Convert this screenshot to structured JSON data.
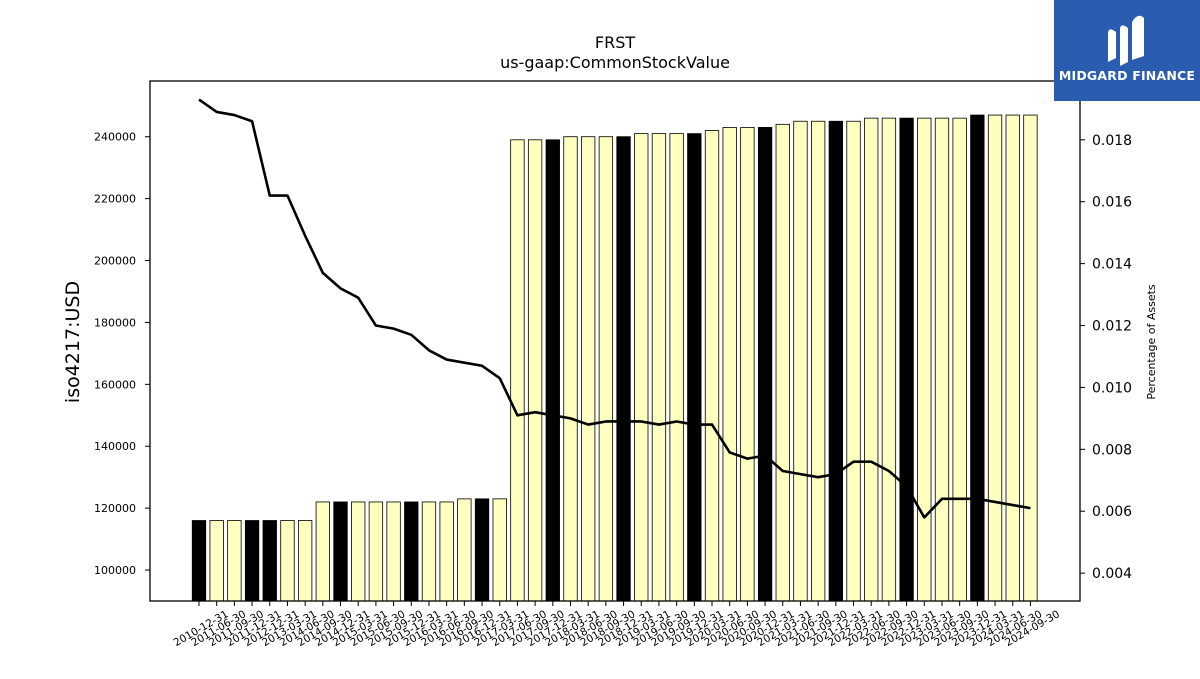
{
  "brand": {
    "name": "MIDGARD FINANCE",
    "bg_color": "#2a5db0"
  },
  "chart_data": {
    "type": "bar",
    "title": "FRST",
    "subtitle": "us-gaap:CommonStockValue",
    "ylabel": "iso4217:USD",
    "y2label": "Percentage of Assets",
    "ylim": [
      90000,
      258000
    ],
    "y2lim": [
      0.0031,
      0.0199
    ],
    "yticks": [
      100000,
      120000,
      140000,
      160000,
      180000,
      200000,
      220000,
      240000
    ],
    "y2ticks": [
      0.004,
      0.006,
      0.008,
      0.01,
      0.012,
      0.014,
      0.016,
      0.018
    ],
    "bar_colors": {
      "annual": "#000000",
      "quarterly": "#ffffc0"
    },
    "line_color": "#000000",
    "x_labels": [
      "2010-12-31",
      "2011-06-30",
      "2011-09-30",
      "2011-12-31",
      "2012-12-31",
      "2013-03-31",
      "2014-06-30",
      "2014-09-30",
      "2014-12-31",
      "2015-03-31",
      "2015-06-30",
      "2015-09-30",
      "2015-12-31",
      "2016-03-31",
      "2016-06-30",
      "2016-09-30",
      "2016-12-31",
      "2017-03-31",
      "2017-06-30",
      "2017-09-30",
      "2017-12-31",
      "2018-03-31",
      "2018-06-30",
      "2018-09-30",
      "2018-12-31",
      "2019-03-31",
      "2019-06-30",
      "2019-09-30",
      "2019-12-31",
      "2020-03-31",
      "2020-06-30",
      "2020-09-30",
      "2020-12-31",
      "2021-03-31",
      "2021-06-30",
      "2021-09-30",
      "2021-12-31",
      "2022-03-31",
      "2022-06-30",
      "2022-09-30",
      "2022-12-31",
      "2023-03-31",
      "2023-06-30",
      "2023-09-30",
      "2023-12-31",
      "2024-03-31",
      "2024-06-30",
      "2024-09-30"
    ],
    "values": [
      116000,
      116000,
      116000,
      116000,
      116000,
      116000,
      116000,
      122000,
      122000,
      122000,
      122000,
      122000,
      122000,
      122000,
      122000,
      123000,
      123000,
      123000,
      239000,
      239000,
      239000,
      240000,
      240000,
      240000,
      240000,
      241000,
      241000,
      241000,
      241000,
      242000,
      243000,
      243000,
      243000,
      244000,
      245000,
      245000,
      245000,
      245000,
      246000,
      246000,
      246000,
      246000,
      246000,
      246000,
      247000,
      247000,
      247000,
      247000
    ],
    "annual": [
      true,
      false,
      false,
      true,
      true,
      false,
      false,
      false,
      true,
      false,
      false,
      false,
      true,
      false,
      false,
      false,
      true,
      false,
      false,
      false,
      true,
      false,
      false,
      false,
      true,
      false,
      false,
      false,
      true,
      false,
      false,
      false,
      true,
      false,
      false,
      false,
      true,
      false,
      false,
      false,
      true,
      false,
      false,
      false,
      true,
      false,
      false,
      false
    ],
    "pct_of_assets": [
      0.0193,
      0.0189,
      0.0188,
      0.0186,
      0.0162,
      0.0162,
      0.0149,
      0.0137,
      0.0132,
      0.0129,
      0.012,
      0.0119,
      0.0117,
      0.0112,
      0.0109,
      0.0108,
      0.0107,
      0.0103,
      0.0091,
      0.0092,
      0.0091,
      0.009,
      0.0088,
      0.0089,
      0.0089,
      0.0089,
      0.0088,
      0.0089,
      0.0088,
      0.0088,
      0.0079,
      0.0077,
      0.0078,
      0.0073,
      0.0072,
      0.0071,
      0.0072,
      0.0076,
      0.0076,
      0.0073,
      0.0068,
      0.0058,
      0.0064,
      0.0064,
      0.0064,
      0.0063,
      0.0062,
      0.0061
    ]
  }
}
